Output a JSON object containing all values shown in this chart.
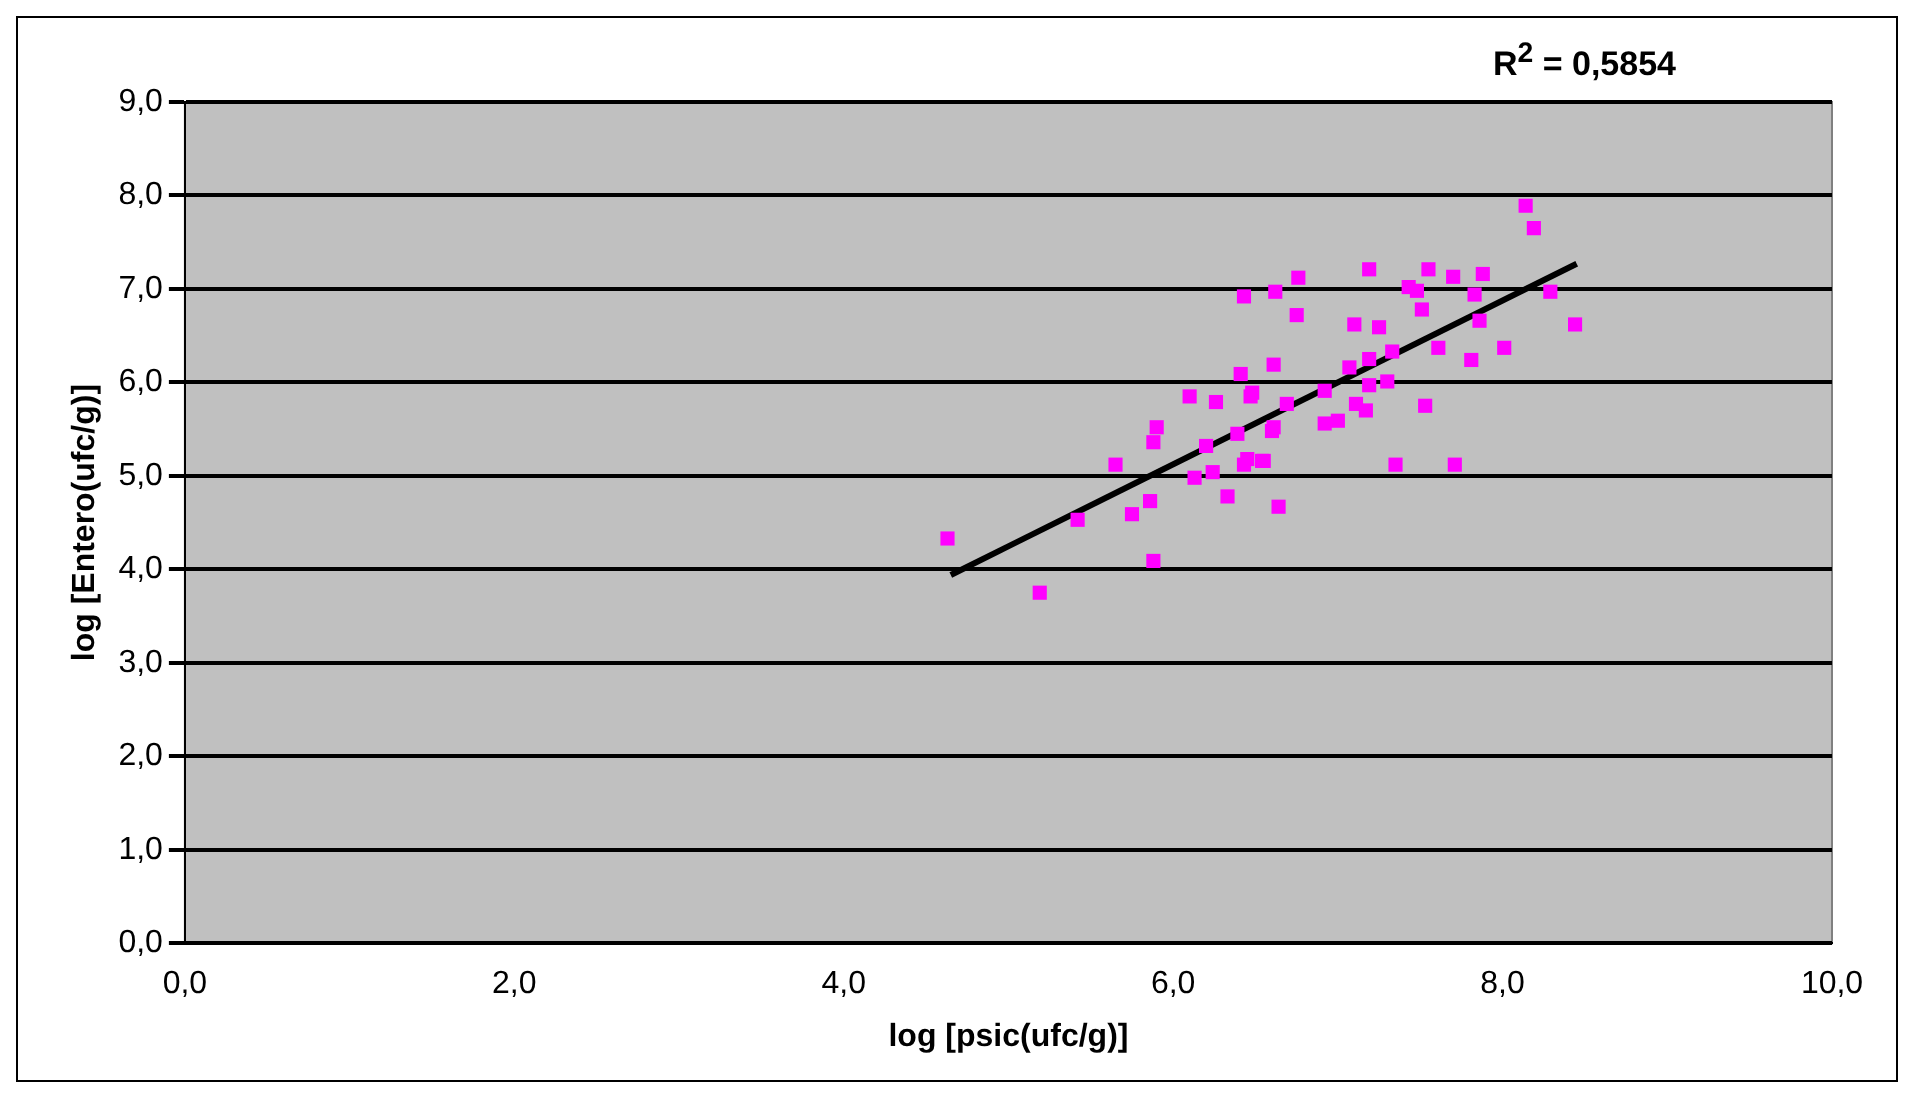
{
  "chart_data": {
    "type": "scatter",
    "xlabel": "log [psic(ufc/g)]",
    "ylabel": "log [Entero(ufc/g)]",
    "annotations": [
      "R$^{2}$ = 0,5854"
    ],
    "xlim": [
      0,
      10
    ],
    "xticks": [
      {
        "value": 0,
        "label": "0,0"
      },
      {
        "value": 2,
        "label": "2,0"
      },
      {
        "value": 4,
        "label": "4,0"
      },
      {
        "value": 6,
        "label": "6,0"
      },
      {
        "value": 8,
        "label": "8,0"
      },
      {
        "value": 10,
        "label": "10,0"
      }
    ],
    "ylim": [
      0,
      9
    ],
    "yticks": [
      {
        "value": 0,
        "label": "0,0"
      },
      {
        "value": 1,
        "label": "1,0"
      },
      {
        "value": 2,
        "label": "2,0"
      },
      {
        "value": 3,
        "label": "3,0"
      },
      {
        "value": 4,
        "label": "4,0"
      },
      {
        "value": 5,
        "label": "5,0"
      },
      {
        "value": 6,
        "label": "6,0"
      },
      {
        "value": 7,
        "label": "7,0"
      },
      {
        "value": 8,
        "label": "8,0"
      },
      {
        "value": 9,
        "label": "9,0"
      }
    ],
    "grid": "y",
    "legend": false,
    "marker": "square",
    "series": [
      {
        "color": "#ff00ff",
        "x": [
          4.63,
          5.19,
          5.42,
          5.65,
          5.75,
          5.86,
          5.88,
          5.9,
          5.88,
          6.13,
          6.2,
          6.24,
          6.33,
          6.43,
          6.55,
          6.64,
          6.6,
          6.39,
          6.1,
          6.26,
          6.43,
          6.41,
          6.47,
          8.14,
          8.19,
          7.19,
          7.55,
          7.43,
          7.7,
          7.88,
          7.83,
          7.51,
          7.48,
          6.76,
          6.62,
          6.75,
          8.29,
          8.44,
          7.86,
          7.1,
          7.25,
          7.33,
          7.61,
          8.01,
          7.81,
          6.61,
          7.07,
          7.19,
          6.48,
          6.69,
          6.92,
          7.3,
          7.19,
          7.11,
          6.92,
          7.0,
          7.17,
          7.53,
          6.61,
          6.45,
          6.54,
          7.35,
          7.71
        ],
        "values": [
          4.33,
          3.75,
          4.53,
          5.12,
          4.59,
          4.73,
          4.09,
          5.52,
          5.36,
          4.98,
          5.32,
          5.04,
          4.78,
          5.12,
          5.16,
          4.67,
          5.48,
          5.45,
          5.85,
          5.79,
          6.92,
          6.09,
          5.85,
          7.89,
          7.65,
          7.21,
          7.21,
          7.02,
          7.13,
          7.16,
          6.94,
          6.78,
          6.98,
          7.12,
          6.97,
          6.72,
          6.97,
          6.62,
          6.66,
          6.62,
          6.59,
          6.33,
          6.37,
          6.37,
          6.24,
          6.19,
          6.16,
          6.25,
          5.89,
          5.77,
          5.91,
          6.01,
          5.97,
          5.77,
          5.56,
          5.59,
          5.7,
          5.75,
          5.52,
          5.18,
          5.16,
          5.12,
          5.12
        ]
      },
      {
        "type": "line",
        "color": "#000000",
        "marker": "none",
        "x": [
          4.65,
          8.45
        ],
        "values": [
          3.94,
          7.27
        ]
      }
    ]
  }
}
